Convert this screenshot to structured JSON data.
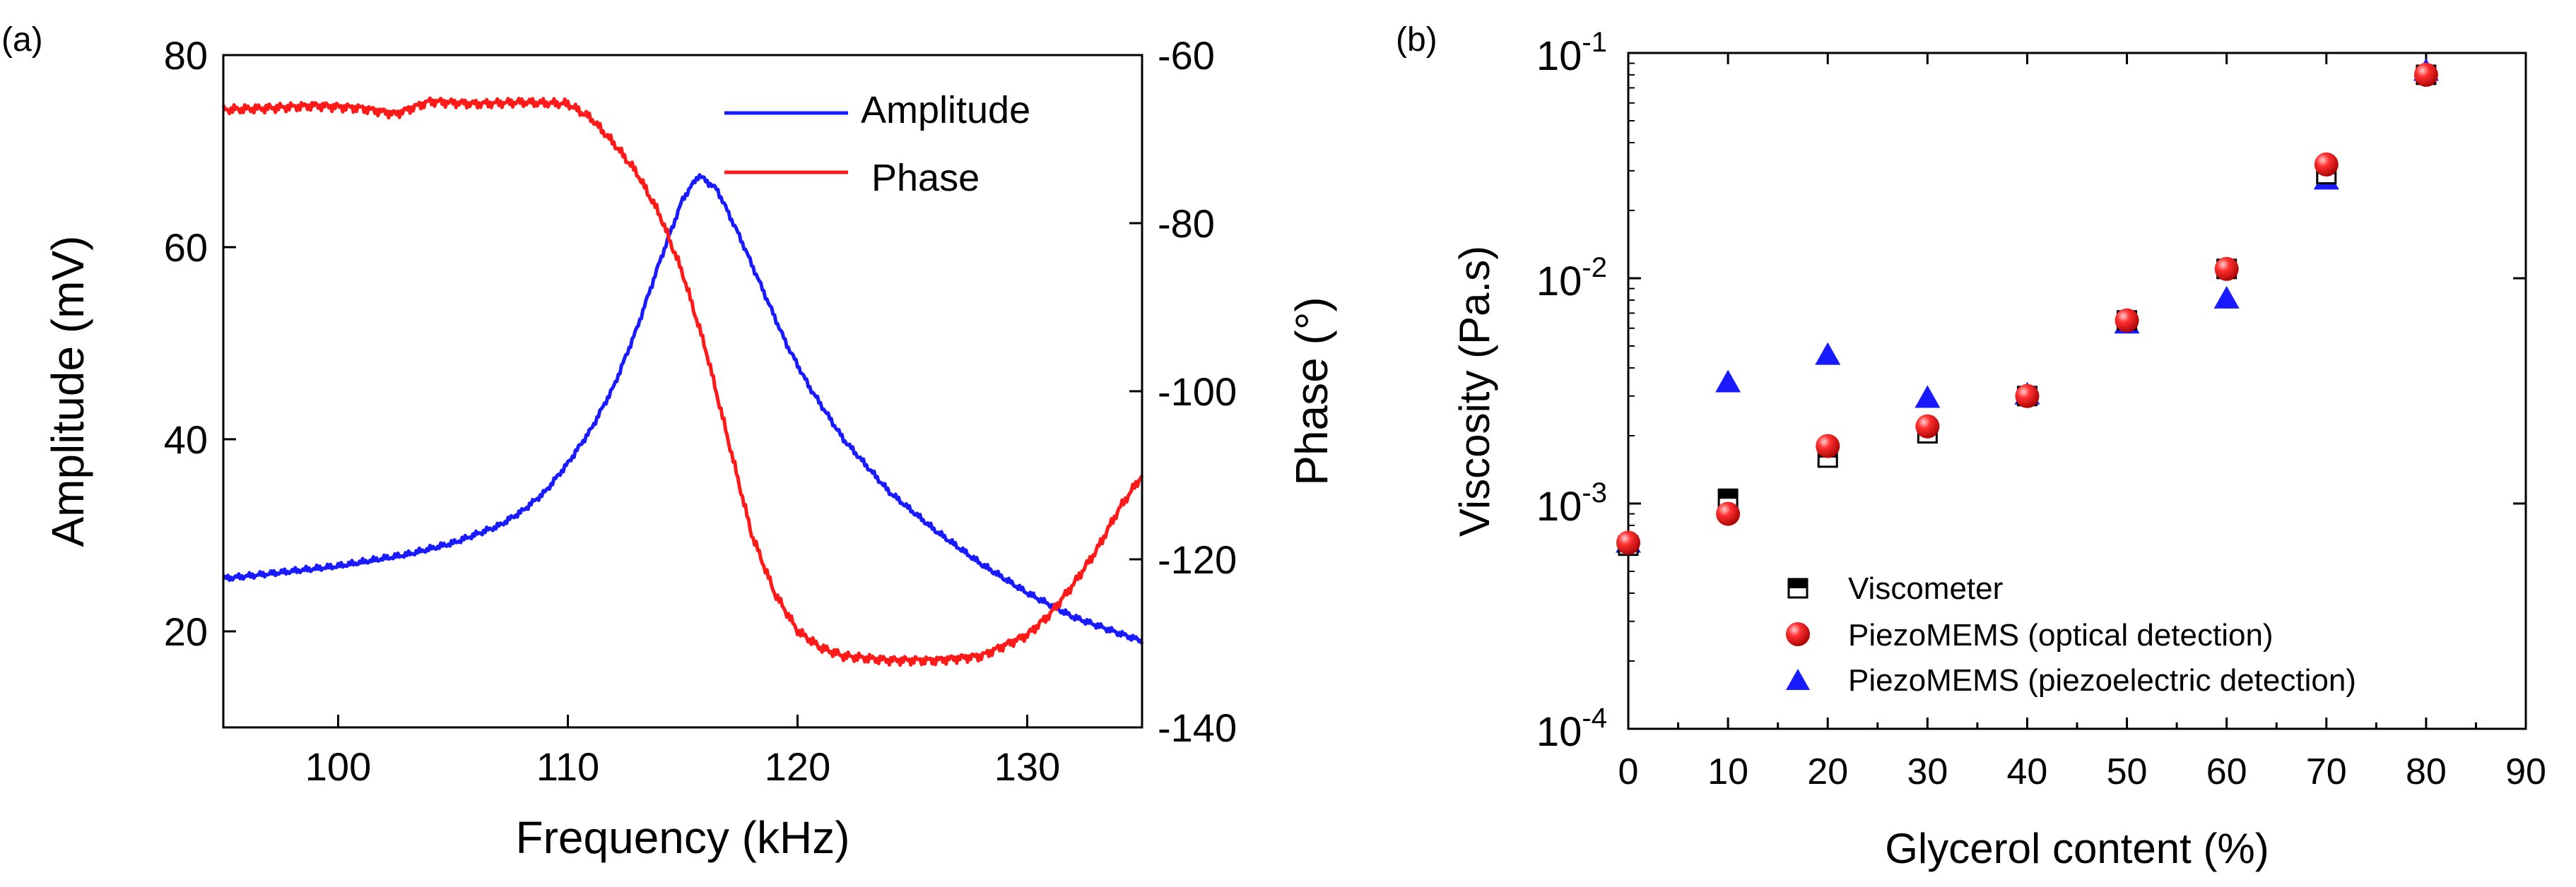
{
  "chart_data": [
    {
      "panel_label": "(a)",
      "type": "line",
      "xlabel": "Frequency (kHz)",
      "ylabel": "Amplitude (mV)",
      "y2label": "Phase (°)",
      "xlim": [
        95,
        135
      ],
      "ylim": [
        10,
        80
      ],
      "y2lim": [
        -140,
        -60
      ],
      "xticks": [
        100,
        110,
        120,
        130
      ],
      "yticks": [
        20,
        40,
        60,
        80
      ],
      "y2ticks": [
        -60,
        -80,
        -100,
        -120,
        -140
      ],
      "grid": false,
      "legend": "top-right",
      "series": [
        {
          "name": "Amplitude",
          "axis": "left",
          "color": "#1a1aff",
          "x": [
            95,
            97,
            100,
            103,
            105,
            107,
            108,
            109,
            110,
            111,
            112,
            113,
            114,
            115,
            115.7,
            116.5,
            117.5,
            118.5,
            119.5,
            120.5,
            122,
            124,
            126,
            128,
            130,
            132,
            134,
            135
          ],
          "values": [
            25.5,
            26.0,
            26.8,
            28.0,
            29.2,
            31.0,
            32.5,
            34.5,
            37.5,
            41.0,
            45.5,
            51.5,
            58.5,
            65.0,
            67.5,
            66.0,
            61.0,
            55.5,
            50.0,
            45.5,
            40.0,
            34.5,
            30.5,
            27.0,
            24.0,
            21.5,
            19.8,
            19.0
          ]
        },
        {
          "name": "Phase",
          "axis": "right",
          "color": "#ff1a1a",
          "x": [
            95,
            97,
            99,
            101,
            102.5,
            104,
            106,
            108,
            110,
            111,
            112,
            113,
            114,
            115,
            116,
            117,
            118,
            119,
            120,
            121,
            122,
            124,
            126,
            128,
            130,
            131,
            132,
            133,
            134,
            135
          ],
          "values": [
            -66.5,
            -66.3,
            -66.0,
            -66.3,
            -67.0,
            -65.5,
            -65.8,
            -65.6,
            -65.8,
            -67.5,
            -70.5,
            -74.0,
            -79.0,
            -86.0,
            -95.0,
            -106.0,
            -117.0,
            -124.0,
            -128.5,
            -130.5,
            -131.5,
            -132.0,
            -132.0,
            -131.5,
            -129.0,
            -126.5,
            -123.0,
            -119.0,
            -114.0,
            -110.0
          ]
        }
      ]
    },
    {
      "panel_label": "(b)",
      "type": "scatter",
      "xlabel": "Glycerol content (%)",
      "ylabel": "Viscosity (Pa.s)",
      "xlim": [
        0,
        90
      ],
      "ylim": [
        0.0001,
        0.1
      ],
      "yscale": "log",
      "xticks": [
        0,
        10,
        20,
        30,
        40,
        50,
        60,
        70,
        80,
        90
      ],
      "yticks": [
        {
          "value": 0.0001,
          "base": "10",
          "exp": "-4"
        },
        {
          "value": 0.001,
          "base": "10",
          "exp": "-3"
        },
        {
          "value": 0.01,
          "base": "10",
          "exp": "-2"
        },
        {
          "value": 0.1,
          "base": "10",
          "exp": "-1"
        }
      ],
      "grid": false,
      "legend": "bottom-left",
      "series": [
        {
          "name": "Viscometer",
          "marker": "half-square",
          "color": "#000000",
          "x": [
            0,
            10,
            20,
            30,
            40,
            50,
            60,
            70,
            80
          ],
          "values": [
            0.00065,
            0.00105,
            0.0016,
            0.00205,
            0.003,
            0.0065,
            0.011,
            0.029,
            0.08
          ]
        },
        {
          "name": "PiezoMEMS (optical detection)",
          "marker": "circle",
          "color": "#ff1a1a",
          "x": [
            0,
            10,
            20,
            30,
            40,
            50,
            60,
            70,
            80
          ],
          "values": [
            0.00067,
            0.0009,
            0.0018,
            0.0022,
            0.003,
            0.0065,
            0.011,
            0.032,
            0.08
          ]
        },
        {
          "name": "PiezoMEMS (piezoelectric detection)",
          "marker": "triangle",
          "color": "#1a1aff",
          "x": [
            0,
            10,
            20,
            30,
            40,
            50,
            60,
            70,
            80
          ],
          "values": [
            0.00066,
            0.0034,
            0.0045,
            0.0029,
            0.003,
            0.0062,
            0.008,
            0.027,
            0.082
          ]
        }
      ]
    }
  ]
}
